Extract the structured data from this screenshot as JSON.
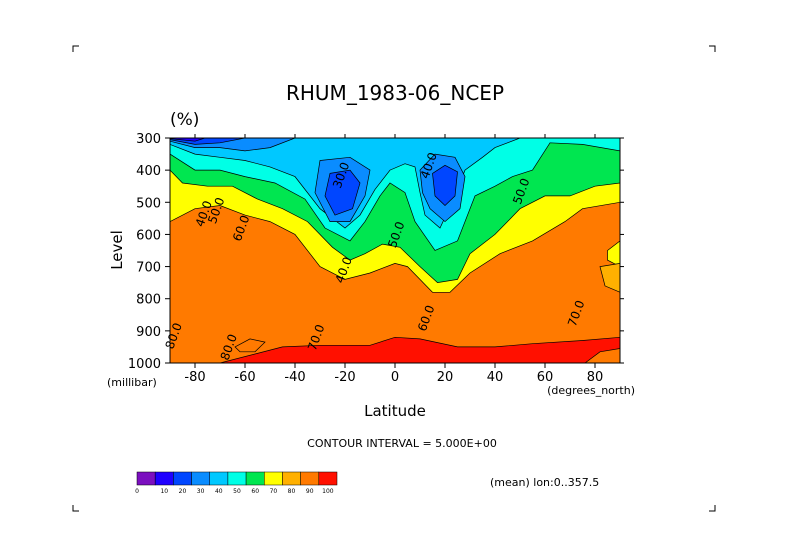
{
  "chart_data": {
    "type": "heatmap",
    "title": "RHUM_1983-06_NCEP",
    "units": "(%)",
    "ylabel": "Level",
    "yunits": "(millibar)",
    "xlabel": "Latitude",
    "xunits": "(degrees_north)",
    "xlim": [
      -90,
      90
    ],
    "ylim": [
      1000,
      300
    ],
    "x_ticks": [
      -80,
      -60,
      -40,
      -20,
      0,
      20,
      40,
      60,
      80
    ],
    "x_tick_labels": [
      "-80",
      "-60",
      "-40",
      "-20",
      "0",
      "20",
      "40",
      "60",
      "80"
    ],
    "y_ticks": [
      300,
      400,
      500,
      600,
      700,
      800,
      900,
      1000
    ],
    "y_tick_labels": [
      "300",
      "400",
      "500",
      "600",
      "700",
      "800",
      "900",
      "1000"
    ],
    "contour_interval_text": "CONTOUR INTERVAL = 5.000E+00",
    "mean_text": "(mean) lon:0..357.5",
    "grid": false,
    "colorbar": {
      "levels": [
        0,
        10,
        20,
        30,
        40,
        50,
        60,
        70,
        80,
        90,
        100
      ],
      "labels": [
        "0",
        "10",
        "20",
        "30",
        "40",
        "50",
        "60",
        "70",
        "80",
        "90",
        "100"
      ],
      "colors": [
        "#7b0fbf",
        "#1f00ff",
        "#0046ff",
        "#0a8cff",
        "#00c8ff",
        "#00ffe6",
        "#00e650",
        "#ffff00",
        "#ffb000",
        "#ff7a00",
        "#ff1000"
      ]
    },
    "contour_labels": [
      {
        "text": "30.0",
        "lat": -20,
        "lev": 420
      },
      {
        "text": "40.0",
        "lat": 15,
        "lev": 390
      },
      {
        "text": "50.0",
        "lat": 52,
        "lev": 470
      },
      {
        "text": "40.0",
        "lat": -75,
        "lev": 540
      },
      {
        "text": "50.0",
        "lat": -70,
        "lev": 530
      },
      {
        "text": "60.0",
        "lat": -60,
        "lev": 585
      },
      {
        "text": "50.0",
        "lat": 2,
        "lev": 605
      },
      {
        "text": "40.0",
        "lat": -19,
        "lev": 715
      },
      {
        "text": "60.0",
        "lat": 14,
        "lev": 865
      },
      {
        "text": "70.0",
        "lat": 74,
        "lev": 850
      },
      {
        "text": "70.0",
        "lat": -30,
        "lev": 925
      },
      {
        "text": "80.0",
        "lat": -87,
        "lev": 920
      },
      {
        "text": "80.0",
        "lat": -65,
        "lev": 955
      }
    ]
  }
}
